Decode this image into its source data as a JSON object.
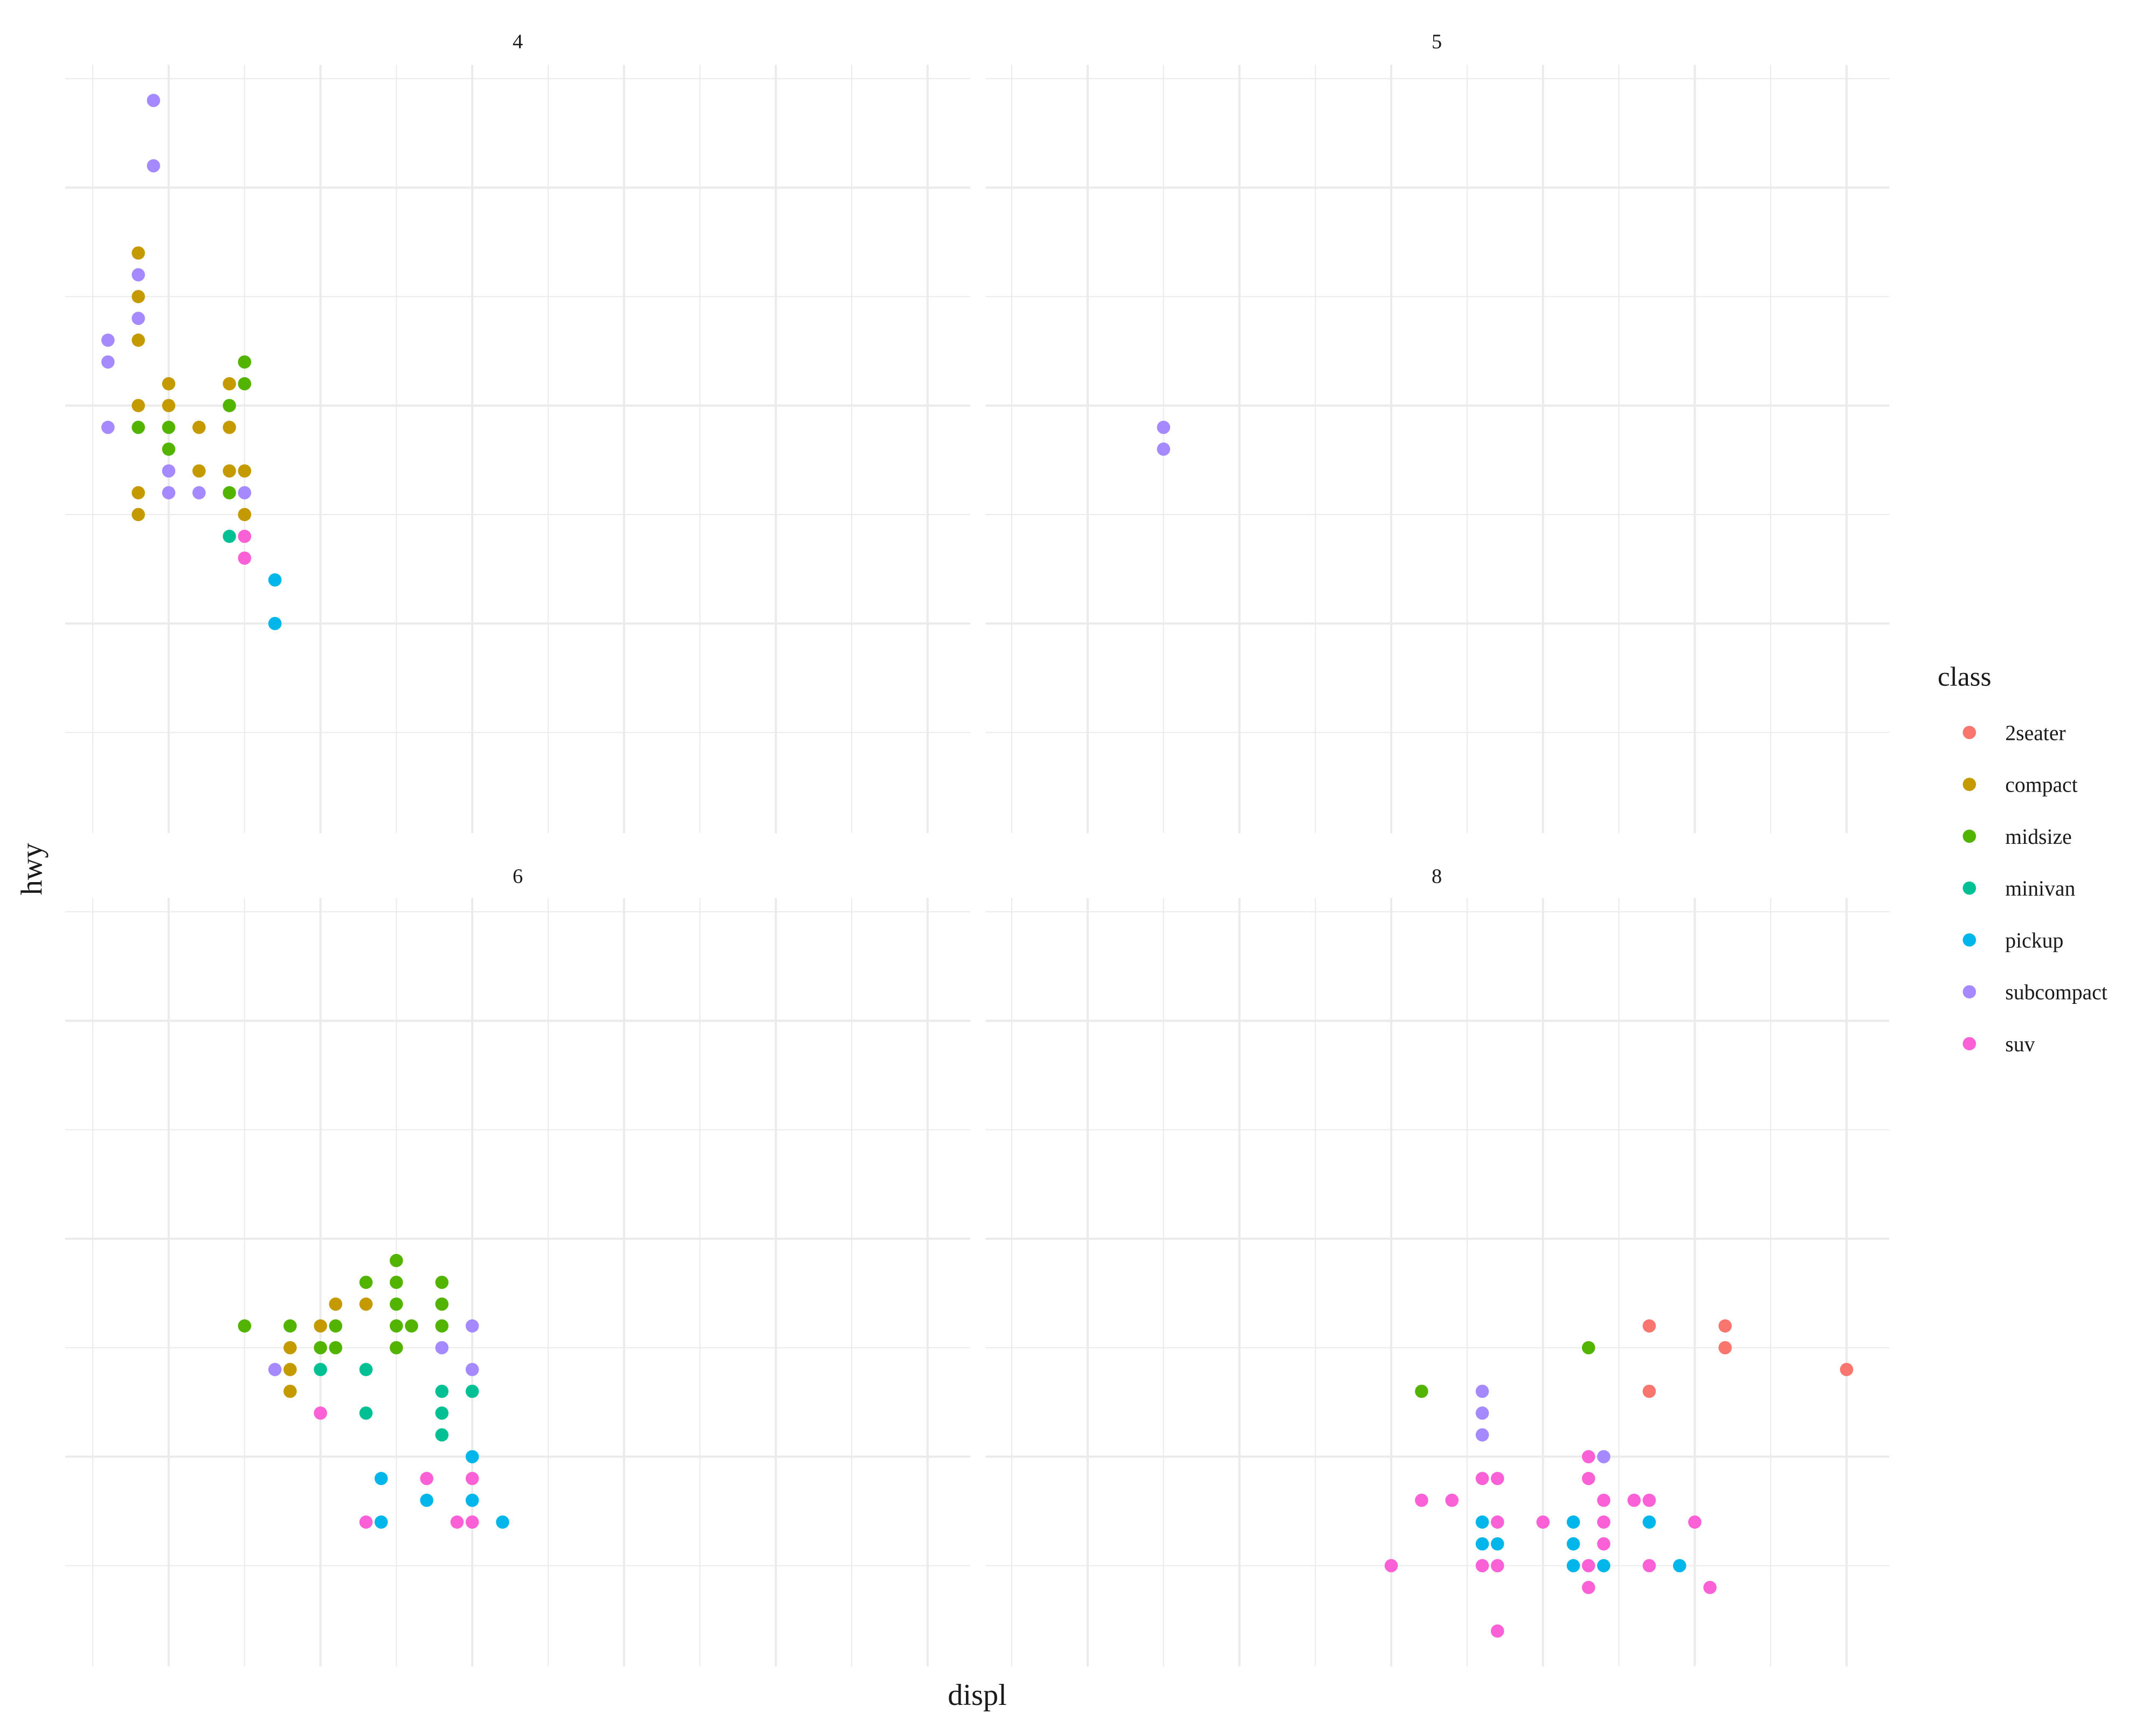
{
  "chart_data": {
    "type": "scatter",
    "title": "",
    "xlabel": "displ",
    "ylabel": "hwy",
    "facet_by": "cyl",
    "facets": [
      "4",
      "5",
      "6",
      "8"
    ],
    "xlim": [
      1.5,
      7.0
    ],
    "ylim": [
      12,
      44
    ],
    "x_major_ticks": [
      2,
      3,
      4,
      5,
      6,
      7
    ],
    "y_major_ticks": [
      20,
      30,
      40
    ],
    "grid": true,
    "axis_tick_labels_shown": false,
    "legend": {
      "title": "class",
      "position": "right",
      "entries": [
        {
          "label": "2seater",
          "color": "#F8766D"
        },
        {
          "label": "compact",
          "color": "#C49A00"
        },
        {
          "label": "midsize",
          "color": "#53B400"
        },
        {
          "label": "minivan",
          "color": "#00C094"
        },
        {
          "label": "pickup",
          "color": "#00B6EB"
        },
        {
          "label": "subcompact",
          "color": "#A58AFF"
        },
        {
          "label": "suv",
          "color": "#FB61D7"
        }
      ]
    },
    "panels": [
      {
        "facet": "4",
        "points": [
          {
            "displ": 1.9,
            "hwy": 44,
            "class": "subcompact"
          },
          {
            "displ": 1.9,
            "hwy": 41,
            "class": "subcompact"
          },
          {
            "displ": 1.8,
            "hwy": 37,
            "class": "compact"
          },
          {
            "displ": 1.8,
            "hwy": 36,
            "class": "subcompact"
          },
          {
            "displ": 1.8,
            "hwy": 35,
            "class": "compact"
          },
          {
            "displ": 1.8,
            "hwy": 34,
            "class": "subcompact"
          },
          {
            "displ": 1.6,
            "hwy": 33,
            "class": "subcompact"
          },
          {
            "displ": 1.8,
            "hwy": 33,
            "class": "compact"
          },
          {
            "displ": 1.6,
            "hwy": 32,
            "class": "subcompact"
          },
          {
            "displ": 2.5,
            "hwy": 32,
            "class": "midsize"
          },
          {
            "displ": 2.0,
            "hwy": 31,
            "class": "compact"
          },
          {
            "displ": 2.4,
            "hwy": 31,
            "class": "compact"
          },
          {
            "displ": 2.5,
            "hwy": 31,
            "class": "midsize"
          },
          {
            "displ": 1.8,
            "hwy": 30,
            "class": "compact"
          },
          {
            "displ": 2.0,
            "hwy": 30,
            "class": "compact"
          },
          {
            "displ": 2.4,
            "hwy": 30,
            "class": "midsize"
          },
          {
            "displ": 1.6,
            "hwy": 29,
            "class": "subcompact"
          },
          {
            "displ": 1.8,
            "hwy": 29,
            "class": "midsize"
          },
          {
            "displ": 2.0,
            "hwy": 29,
            "class": "midsize"
          },
          {
            "displ": 2.2,
            "hwy": 29,
            "class": "compact"
          },
          {
            "displ": 2.4,
            "hwy": 29,
            "class": "compact"
          },
          {
            "displ": 2.0,
            "hwy": 28,
            "class": "midsize"
          },
          {
            "displ": 2.0,
            "hwy": 27,
            "class": "subcompact"
          },
          {
            "displ": 2.2,
            "hwy": 27,
            "class": "compact"
          },
          {
            "displ": 2.4,
            "hwy": 27,
            "class": "compact"
          },
          {
            "displ": 2.5,
            "hwy": 27,
            "class": "compact"
          },
          {
            "displ": 1.8,
            "hwy": 26,
            "class": "compact"
          },
          {
            "displ": 2.0,
            "hwy": 26,
            "class": "subcompact"
          },
          {
            "displ": 2.2,
            "hwy": 26,
            "class": "subcompact"
          },
          {
            "displ": 2.4,
            "hwy": 26,
            "class": "midsize"
          },
          {
            "displ": 2.5,
            "hwy": 26,
            "class": "subcompact"
          },
          {
            "displ": 1.8,
            "hwy": 25,
            "class": "compact"
          },
          {
            "displ": 2.5,
            "hwy": 25,
            "class": "compact"
          },
          {
            "displ": 2.4,
            "hwy": 24,
            "class": "minivan"
          },
          {
            "displ": 2.5,
            "hwy": 24,
            "class": "suv"
          },
          {
            "displ": 2.5,
            "hwy": 23,
            "class": "suv"
          },
          {
            "displ": 2.7,
            "hwy": 22,
            "class": "pickup"
          },
          {
            "displ": 2.7,
            "hwy": 20,
            "class": "pickup"
          }
        ]
      },
      {
        "facet": "5",
        "points": [
          {
            "displ": 2.5,
            "hwy": 29,
            "class": "subcompact"
          },
          {
            "displ": 2.5,
            "hwy": 28,
            "class": "subcompact"
          }
        ]
      },
      {
        "facet": "6",
        "points": [
          {
            "displ": 3.5,
            "hwy": 29,
            "class": "midsize"
          },
          {
            "displ": 3.3,
            "hwy": 28,
            "class": "midsize"
          },
          {
            "displ": 3.5,
            "hwy": 28,
            "class": "midsize"
          },
          {
            "displ": 3.8,
            "hwy": 28,
            "class": "midsize"
          },
          {
            "displ": 3.1,
            "hwy": 27,
            "class": "compact"
          },
          {
            "displ": 3.3,
            "hwy": 27,
            "class": "compact"
          },
          {
            "displ": 3.5,
            "hwy": 27,
            "class": "midsize"
          },
          {
            "displ": 3.8,
            "hwy": 27,
            "class": "midsize"
          },
          {
            "displ": 2.5,
            "hwy": 26,
            "class": "midsize"
          },
          {
            "displ": 2.8,
            "hwy": 26,
            "class": "midsize"
          },
          {
            "displ": 3.0,
            "hwy": 26,
            "class": "compact"
          },
          {
            "displ": 3.1,
            "hwy": 26,
            "class": "midsize"
          },
          {
            "displ": 3.5,
            "hwy": 26,
            "class": "midsize"
          },
          {
            "displ": 3.6,
            "hwy": 26,
            "class": "midsize"
          },
          {
            "displ": 3.8,
            "hwy": 26,
            "class": "midsize"
          },
          {
            "displ": 4.0,
            "hwy": 26,
            "class": "subcompact"
          },
          {
            "displ": 2.8,
            "hwy": 25,
            "class": "compact"
          },
          {
            "displ": 3.0,
            "hwy": 25,
            "class": "midsize"
          },
          {
            "displ": 3.1,
            "hwy": 25,
            "class": "midsize"
          },
          {
            "displ": 3.5,
            "hwy": 25,
            "class": "midsize"
          },
          {
            "displ": 3.8,
            "hwy": 25,
            "class": "subcompact"
          },
          {
            "displ": 2.7,
            "hwy": 24,
            "class": "subcompact"
          },
          {
            "displ": 2.8,
            "hwy": 24,
            "class": "compact"
          },
          {
            "displ": 3.0,
            "hwy": 24,
            "class": "minivan"
          },
          {
            "displ": 3.3,
            "hwy": 24,
            "class": "minivan"
          },
          {
            "displ": 4.0,
            "hwy": 24,
            "class": "subcompact"
          },
          {
            "displ": 2.8,
            "hwy": 23,
            "class": "compact"
          },
          {
            "displ": 3.8,
            "hwy": 23,
            "class": "minivan"
          },
          {
            "displ": 4.0,
            "hwy": 23,
            "class": "minivan"
          },
          {
            "displ": 3.0,
            "hwy": 22,
            "class": "suv"
          },
          {
            "displ": 3.3,
            "hwy": 22,
            "class": "minivan"
          },
          {
            "displ": 3.8,
            "hwy": 22,
            "class": "minivan"
          },
          {
            "displ": 3.8,
            "hwy": 21,
            "class": "minivan"
          },
          {
            "displ": 4.0,
            "hwy": 20,
            "class": "pickup"
          },
          {
            "displ": 3.4,
            "hwy": 19,
            "class": "pickup"
          },
          {
            "displ": 3.7,
            "hwy": 19,
            "class": "suv"
          },
          {
            "displ": 4.0,
            "hwy": 19,
            "class": "suv"
          },
          {
            "displ": 3.7,
            "hwy": 18,
            "class": "pickup"
          },
          {
            "displ": 4.0,
            "hwy": 18,
            "class": "pickup"
          },
          {
            "displ": 3.3,
            "hwy": 17,
            "class": "suv"
          },
          {
            "displ": 3.4,
            "hwy": 17,
            "class": "pickup"
          },
          {
            "displ": 3.9,
            "hwy": 17,
            "class": "suv"
          },
          {
            "displ": 4.0,
            "hwy": 17,
            "class": "suv"
          },
          {
            "displ": 4.2,
            "hwy": 17,
            "class": "pickup"
          }
        ]
      },
      {
        "facet": "8",
        "points": [
          {
            "displ": 5.7,
            "hwy": 26,
            "class": "2seater"
          },
          {
            "displ": 6.2,
            "hwy": 26,
            "class": "2seater"
          },
          {
            "displ": 6.2,
            "hwy": 25,
            "class": "2seater"
          },
          {
            "displ": 7.0,
            "hwy": 24,
            "class": "2seater"
          },
          {
            "displ": 5.7,
            "hwy": 23,
            "class": "2seater"
          },
          {
            "displ": 5.3,
            "hwy": 25,
            "class": "midsize"
          },
          {
            "displ": 4.2,
            "hwy": 23,
            "class": "midsize"
          },
          {
            "displ": 4.6,
            "hwy": 23,
            "class": "subcompact"
          },
          {
            "displ": 4.6,
            "hwy": 22,
            "class": "subcompact"
          },
          {
            "displ": 4.6,
            "hwy": 21,
            "class": "subcompact"
          },
          {
            "displ": 5.4,
            "hwy": 20,
            "class": "subcompact"
          },
          {
            "displ": 5.3,
            "hwy": 20,
            "class": "suv"
          },
          {
            "displ": 4.6,
            "hwy": 19,
            "class": "suv"
          },
          {
            "displ": 4.7,
            "hwy": 19,
            "class": "suv"
          },
          {
            "displ": 5.3,
            "hwy": 19,
            "class": "suv"
          },
          {
            "displ": 4.2,
            "hwy": 18,
            "class": "suv"
          },
          {
            "displ": 4.4,
            "hwy": 18,
            "class": "suv"
          },
          {
            "displ": 5.4,
            "hwy": 18,
            "class": "suv"
          },
          {
            "displ": 5.6,
            "hwy": 18,
            "class": "suv"
          },
          {
            "displ": 5.7,
            "hwy": 18,
            "class": "suv"
          },
          {
            "displ": 4.6,
            "hwy": 17,
            "class": "pickup"
          },
          {
            "displ": 4.7,
            "hwy": 17,
            "class": "suv"
          },
          {
            "displ": 5.0,
            "hwy": 17,
            "class": "suv"
          },
          {
            "displ": 5.2,
            "hwy": 17,
            "class": "pickup"
          },
          {
            "displ": 5.4,
            "hwy": 17,
            "class": "suv"
          },
          {
            "displ": 5.7,
            "hwy": 17,
            "class": "pickup"
          },
          {
            "displ": 6.0,
            "hwy": 17,
            "class": "suv"
          },
          {
            "displ": 4.6,
            "hwy": 16,
            "class": "pickup"
          },
          {
            "displ": 4.7,
            "hwy": 16,
            "class": "pickup"
          },
          {
            "displ": 5.2,
            "hwy": 16,
            "class": "pickup"
          },
          {
            "displ": 5.4,
            "hwy": 16,
            "class": "suv"
          },
          {
            "displ": 4.0,
            "hwy": 15,
            "class": "suv"
          },
          {
            "displ": 4.6,
            "hwy": 15,
            "class": "suv"
          },
          {
            "displ": 4.7,
            "hwy": 15,
            "class": "suv"
          },
          {
            "displ": 5.2,
            "hwy": 15,
            "class": "pickup"
          },
          {
            "displ": 5.3,
            "hwy": 15,
            "class": "suv"
          },
          {
            "displ": 5.4,
            "hwy": 15,
            "class": "pickup"
          },
          {
            "displ": 5.7,
            "hwy": 15,
            "class": "suv"
          },
          {
            "displ": 5.9,
            "hwy": 15,
            "class": "pickup"
          },
          {
            "displ": 5.3,
            "hwy": 14,
            "class": "suv"
          },
          {
            "displ": 6.1,
            "hwy": 14,
            "class": "suv"
          },
          {
            "displ": 4.7,
            "hwy": 12,
            "class": "suv"
          }
        ]
      }
    ]
  },
  "labels": {
    "x_axis_title": "displ",
    "y_axis_title": "hwy",
    "legend_title": "class",
    "strips": [
      "4",
      "5",
      "6",
      "8"
    ],
    "legend_items": [
      "2seater",
      "compact",
      "midsize",
      "minivan",
      "pickup",
      "subcompact",
      "suv"
    ]
  }
}
